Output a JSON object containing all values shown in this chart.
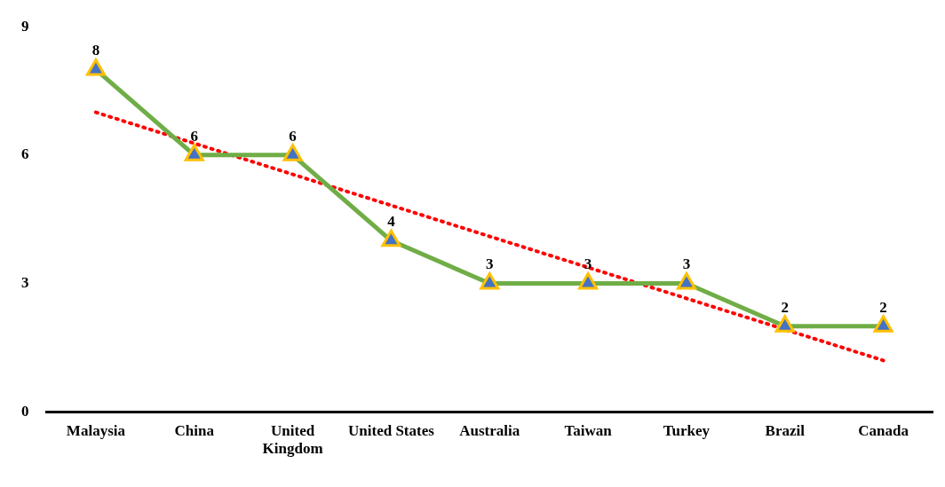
{
  "chart_data": {
    "type": "line",
    "categories": [
      "Malaysia",
      "China",
      "United Kingdom",
      "United States",
      "Australia",
      "Taiwan",
      "Turkey",
      "Brazil",
      "Canada"
    ],
    "series": [
      {
        "color": "#70ad47",
        "values": [
          8,
          6,
          6,
          4,
          3,
          3,
          3,
          2,
          2
        ],
        "value_labels": [
          "8",
          "6",
          "6",
          "4",
          "3",
          "3",
          "3",
          "2",
          "2"
        ]
      },
      {
        "type": "line",
        "color": "#ff0000",
        "x": [
          "Malaysia",
          "Canada"
        ],
        "values": [
          7.0,
          1.2
        ],
        "line_style": "dotted",
        "marker": "none"
      }
    ],
    "ylim": [
      0,
      9
    ],
    "yticks": [
      0,
      3,
      6,
      9
    ],
    "grid": false,
    "legend": false,
    "marker": "triangle",
    "line_style": "solid"
  }
}
